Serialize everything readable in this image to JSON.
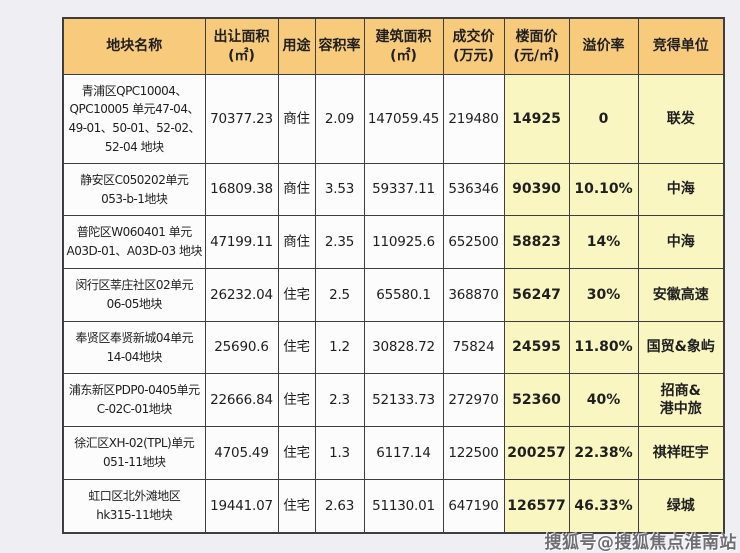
{
  "page": {
    "watermark": "搜狐号@搜狐焦点淮南站"
  },
  "colors": {
    "page_bg": "#EFEEF2",
    "header_bg": "#F8CA7B",
    "highlight_bg": "#F9F6C1",
    "cell_bg": "#FCFCFD",
    "border": "#3E3E3E",
    "text": "#1F1F1F"
  },
  "chart_data": {
    "type": "table",
    "title": "",
    "columns": [
      {
        "key": "name",
        "label": "地块名称",
        "width": 142,
        "highlight": false
      },
      {
        "key": "transfer_area",
        "label": "出让面积\n(㎡)",
        "width": 73,
        "highlight": false
      },
      {
        "key": "use",
        "label": "用途",
        "width": 37,
        "highlight": false
      },
      {
        "key": "plot_ratio",
        "label": "容积率",
        "width": 49,
        "highlight": false
      },
      {
        "key": "building_area",
        "label": "建筑面积\n(㎡)",
        "width": 79,
        "highlight": false
      },
      {
        "key": "deal_price",
        "label": "成交价\n(万元)",
        "width": 61,
        "highlight": false
      },
      {
        "key": "floor_price",
        "label": "楼面价\n(元/㎡)",
        "width": 65,
        "highlight": true
      },
      {
        "key": "premium_rate",
        "label": "溢价率",
        "width": 69,
        "highlight": true
      },
      {
        "key": "winner",
        "label": "竞得单位",
        "width": 86,
        "highlight": true
      }
    ],
    "rows": [
      {
        "height": 89,
        "cells": [
          "青浦区QPC10004、\nQPC10005 单元47-04、\n49-01、50-01、52-02、\n52-04 地块",
          "70377.23",
          "商住",
          "2.09",
          "147059.45",
          "219480",
          "14925",
          "0",
          "联发"
        ]
      },
      {
        "height": 52,
        "cells": [
          "静安区C050202单元\n053-b-1地块",
          "16809.38",
          "商住",
          "3.53",
          "59337.11",
          "536346",
          "90390",
          "10.10%",
          "中海"
        ]
      },
      {
        "height": 53,
        "cells": [
          "普陀区W060401 单元\nA03D-01、A03D-03 地块",
          "47199.11",
          "商住",
          "2.35",
          "110925.6",
          "652500",
          "58823",
          "14%",
          "中海"
        ]
      },
      {
        "height": 53,
        "cells": [
          "闵行区莘庄社区02单元\n06-05地块",
          "26232.04",
          "住宅",
          "2.5",
          "65580.1",
          "368870",
          "56247",
          "30%",
          "安徽高速"
        ]
      },
      {
        "height": 52,
        "cells": [
          "奉贤区奉贤新城04单元\n14-04地块",
          "25690.6",
          "住宅",
          "1.2",
          "30828.72",
          "75824",
          "24595",
          "11.80%",
          "国贸&象屿"
        ]
      },
      {
        "height": 53,
        "cells": [
          "浦东新区PDP0-0405单元\nC-02C-01地块",
          "22666.84",
          "住宅",
          "2.3",
          "52133.73",
          "272970",
          "52360",
          "40%",
          "招商&\n港中旅"
        ]
      },
      {
        "height": 53,
        "cells": [
          "徐汇区XH-02(TPL)单元\n051-11地块",
          "4705.49",
          "住宅",
          "1.3",
          "6117.14",
          "122500",
          "200257",
          "22.38%",
          "祺祥旺宇"
        ]
      },
      {
        "height": 53,
        "cells": [
          "虹口区北外滩地区\nhk315-11地块",
          "19441.07",
          "住宅",
          "2.63",
          "51130.01",
          "647190",
          "126577",
          "46.33%",
          "绿城"
        ]
      }
    ]
  }
}
